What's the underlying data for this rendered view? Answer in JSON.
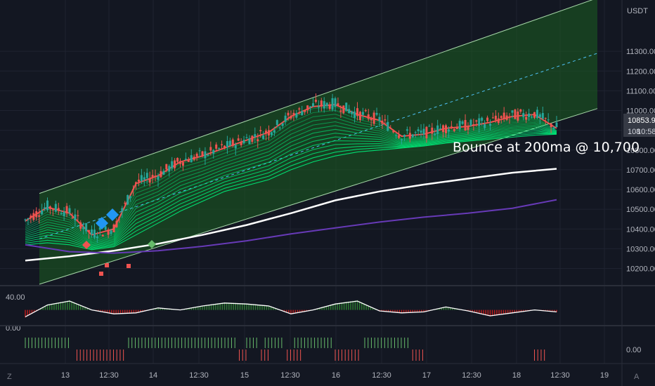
{
  "header": {
    "currency": "USDT"
  },
  "chart_data": [
    {
      "type": "line",
      "title": "",
      "ylim": [
        10120,
        11560
      ],
      "y_ticks": [
        10200,
        10300,
        10400,
        10500,
        10600,
        10700,
        10800,
        10900,
        11000,
        11100,
        11200,
        11300
      ],
      "y_tick_labels": [
        "10200.00",
        "10300.00",
        "10400.00",
        "10500.00",
        "10600.00",
        "10700.00",
        "10800.00",
        "10900.00",
        "11000.00",
        "11100.00",
        "11200.00",
        "11300.00"
      ],
      "x_tick_labels": [
        "13",
        "12:30",
        "14",
        "12:30",
        "15",
        "12:30",
        "16",
        "12:30",
        "17",
        "12:30",
        "18",
        "12:30",
        "19"
      ],
      "price_close_label": "10853.90",
      "countdown_label": "10:58",
      "partial_label": "108",
      "annotation": "Bounce at 200ma @ 10,700",
      "grid": true,
      "series": [
        {
          "role": "ma200",
          "x": [
            0,
            12,
            24,
            36,
            48,
            60,
            72,
            84,
            96,
            108,
            120,
            132,
            144
          ],
          "values": [
            10240,
            10262,
            10290,
            10325,
            10370,
            10420,
            10480,
            10545,
            10590,
            10625,
            10655,
            10685,
            10705
          ]
        },
        {
          "role": "slow-ma",
          "x": [
            0,
            12,
            24,
            36,
            48,
            60,
            72,
            84,
            96,
            108,
            120,
            132,
            144
          ],
          "values": [
            10320,
            10285,
            10278,
            10290,
            10312,
            10340,
            10375,
            10405,
            10435,
            10460,
            10480,
            10505,
            10548
          ]
        },
        {
          "role": "ribbon-top",
          "x": [
            0,
            6,
            12,
            18,
            24,
            30,
            36,
            42,
            48,
            54,
            60,
            66,
            72,
            78,
            84,
            90,
            96,
            102,
            108,
            114,
            120,
            126,
            132,
            138,
            144
          ],
          "values": [
            10430,
            10500,
            10470,
            10360,
            10390,
            10620,
            10660,
            10730,
            10760,
            10800,
            10840,
            10880,
            10960,
            11010,
            11020,
            10970,
            10940,
            10860,
            10870,
            10900,
            10910,
            10930,
            10960,
            10970,
            10900
          ]
        },
        {
          "role": "ribbon-bottom",
          "x": [
            0,
            6,
            12,
            18,
            24,
            30,
            36,
            42,
            48,
            54,
            60,
            66,
            72,
            78,
            84,
            90,
            96,
            102,
            108,
            114,
            120,
            126,
            132,
            138,
            144
          ],
          "values": [
            10320,
            10330,
            10320,
            10295,
            10310,
            10370,
            10430,
            10490,
            10540,
            10590,
            10620,
            10650,
            10700,
            10740,
            10770,
            10790,
            10800,
            10810,
            10820,
            10835,
            10845,
            10855,
            10865,
            10875,
            10880
          ]
        }
      ]
    },
    {
      "type": "area",
      "y_tick_labels": [
        "40.00",
        "0.00"
      ],
      "ylim": [
        0,
        60
      ],
      "oscillator": {
        "x": [
          0,
          6,
          12,
          18,
          24,
          30,
          36,
          42,
          48,
          54,
          60,
          66,
          72,
          78,
          84,
          90,
          96,
          102,
          108,
          114,
          120,
          126,
          132,
          138,
          144
        ],
        "values": [
          8,
          32,
          40,
          22,
          14,
          16,
          26,
          22,
          30,
          36,
          34,
          30,
          14,
          22,
          34,
          40,
          20,
          16,
          18,
          28,
          20,
          10,
          16,
          22,
          18
        ]
      }
    },
    {
      "type": "bar",
      "y_tick_labels": [
        "0.00"
      ],
      "segments_green": [
        [
          0,
          12
        ],
        [
          28,
          57
        ],
        [
          60,
          63
        ],
        [
          65,
          70
        ],
        [
          73,
          83
        ],
        [
          92,
          104
        ]
      ],
      "segments_red": [
        [
          14,
          27
        ],
        [
          58,
          60
        ],
        [
          64,
          66
        ],
        [
          71,
          75
        ],
        [
          84,
          91
        ],
        [
          105,
          108
        ],
        [
          138,
          141
        ]
      ]
    }
  ],
  "colors": {
    "up": "#26a69a",
    "down": "#ef5350",
    "ribbon_green": "#00e676",
    "channel_fill": "#1b5e20",
    "ma200": "#ffffff",
    "slow_ma": "#673ab7",
    "price_tag": "#363a45"
  }
}
